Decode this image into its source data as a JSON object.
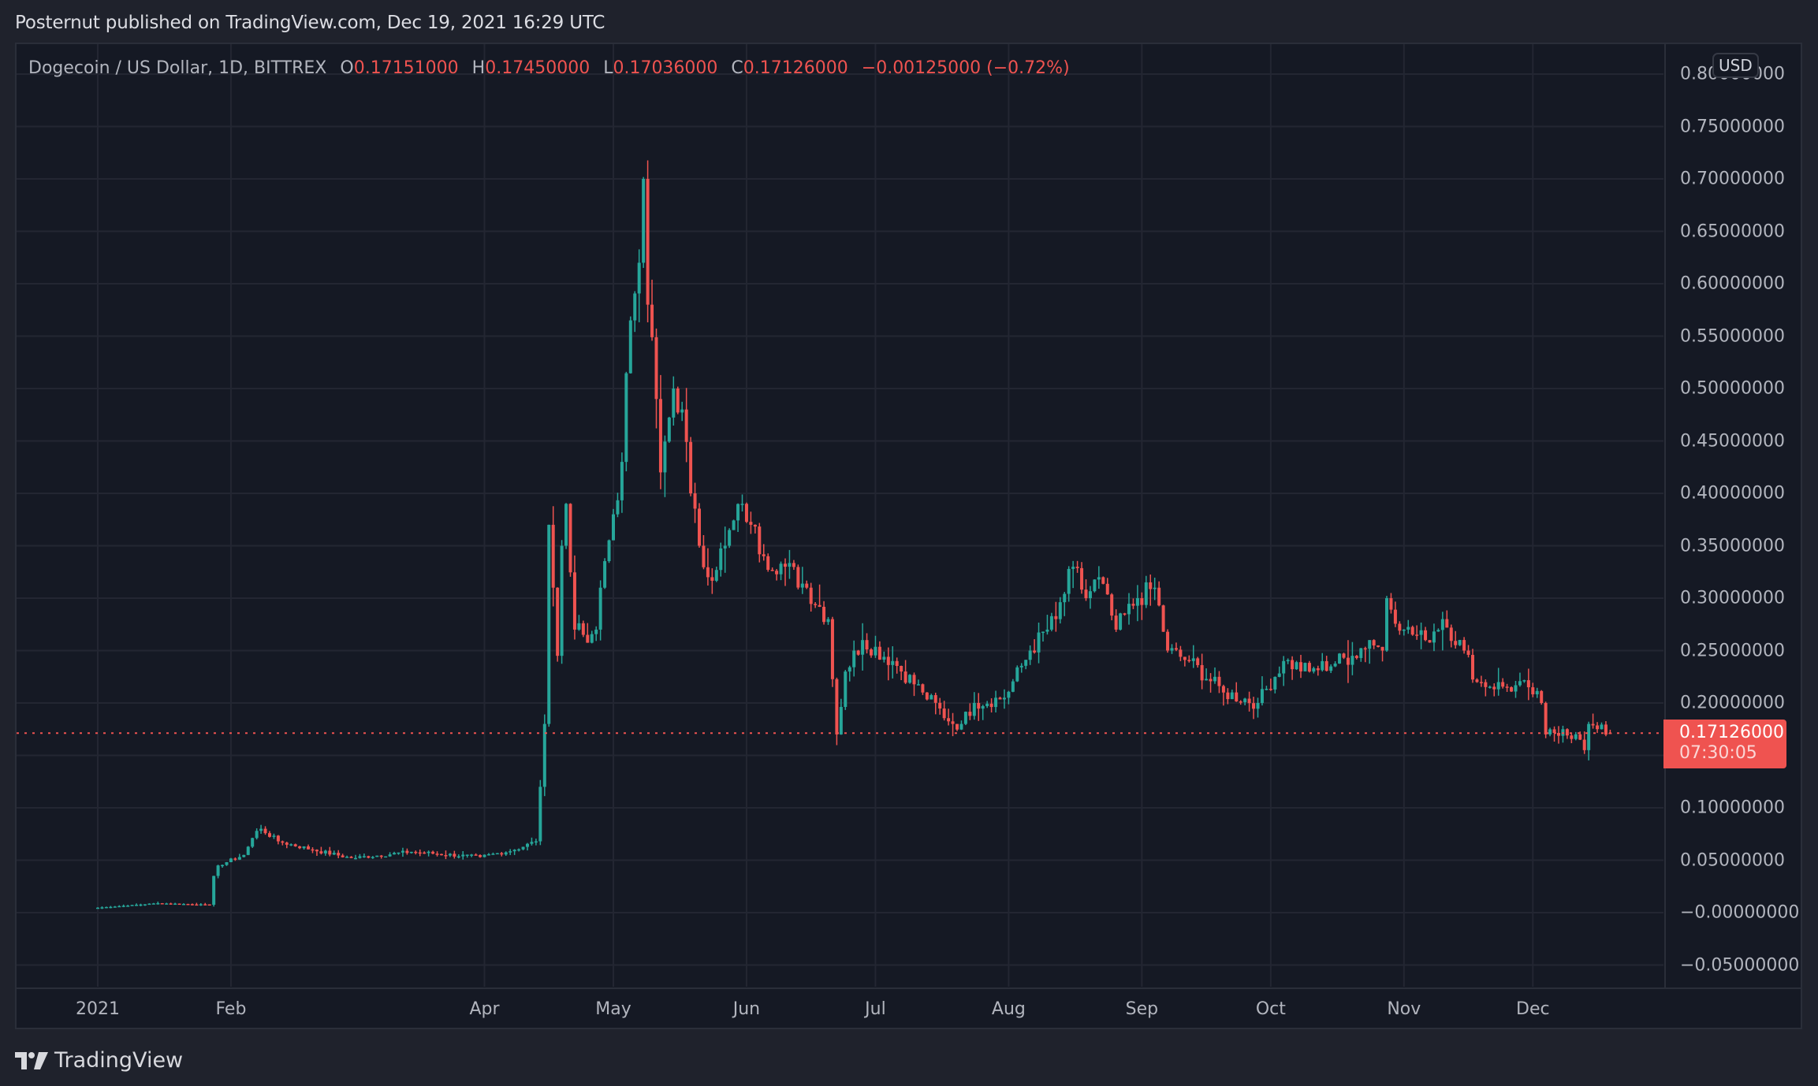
{
  "header": {
    "published": "Posternut published on TradingView.com, Dec 19, 2021 16:29 UTC"
  },
  "legend": {
    "symbol": "Dogecoin / US Dollar, 1D, BITTREX",
    "o_label": "O",
    "o": "0.17151000",
    "h_label": "H",
    "h": "0.17450000",
    "l_label": "L",
    "l": "0.17036000",
    "c_label": "C",
    "c": "0.17126000",
    "change": "−0.00125000 (−0.72%)"
  },
  "price_axis": {
    "currency": "USD",
    "ticks": [
      "0.80000000",
      "0.75000000",
      "0.70000000",
      "0.65000000",
      "0.60000000",
      "0.55000000",
      "0.50000000",
      "0.45000000",
      "0.40000000",
      "0.35000000",
      "0.30000000",
      "0.25000000",
      "0.20000000",
      "0.15000000",
      "0.10000000",
      "0.05000000",
      "−0.00000000",
      "−0.05000000"
    ],
    "last_price": "0.17126000",
    "countdown": "07:30:05"
  },
  "time_axis": {
    "ticks": [
      "2021",
      "Feb",
      "Apr",
      "May",
      "Jun",
      "Jul",
      "Aug",
      "Sep",
      "Oct",
      "Nov",
      "Dec"
    ]
  },
  "footer": {
    "brand": "TradingView"
  },
  "colors": {
    "up": "#26a69a",
    "down": "#ef5350",
    "bg": "#151924",
    "grid": "#232632"
  },
  "chart_data": {
    "type": "candlestick",
    "title": "Dogecoin / US Dollar, 1D, BITTREX",
    "xlabel": "",
    "ylabel": "USD",
    "ylim": [
      -0.06,
      0.82
    ],
    "grid": true,
    "x_ticks": [
      "2021",
      "Feb",
      "Apr",
      "May",
      "Jun",
      "Jul",
      "Aug",
      "Sep",
      "Oct",
      "Nov",
      "Dec"
    ],
    "last": {
      "open": 0.17151,
      "high": 0.1745,
      "low": 0.17036,
      "close": 0.17126,
      "change": -0.00125,
      "change_pct": -0.72
    },
    "approx_close_path": [
      [
        "2021-01-01",
        0.0047
      ],
      [
        "2021-01-15",
        0.009
      ],
      [
        "2021-01-27",
        0.0075
      ],
      [
        "2021-01-28",
        0.035
      ],
      [
        "2021-01-29",
        0.045
      ],
      [
        "2021-02-04",
        0.055
      ],
      [
        "2021-02-07",
        0.078
      ],
      [
        "2021-02-08",
        0.08
      ],
      [
        "2021-02-12",
        0.068
      ],
      [
        "2021-02-20",
        0.06
      ],
      [
        "2021-03-01",
        0.052
      ],
      [
        "2021-03-15",
        0.058
      ],
      [
        "2021-03-31",
        0.053
      ],
      [
        "2021-04-08",
        0.06
      ],
      [
        "2021-04-13",
        0.068
      ],
      [
        "2021-04-14",
        0.12
      ],
      [
        "2021-04-15",
        0.18
      ],
      [
        "2021-04-16",
        0.37
      ],
      [
        "2021-04-17",
        0.31
      ],
      [
        "2021-04-18",
        0.245
      ],
      [
        "2021-04-19",
        0.35
      ],
      [
        "2021-04-20",
        0.39
      ],
      [
        "2021-04-22",
        0.27
      ],
      [
        "2021-04-24",
        0.265
      ],
      [
        "2021-04-27",
        0.27
      ],
      [
        "2021-04-28",
        0.31
      ],
      [
        "2021-05-01",
        0.38
      ],
      [
        "2021-05-03",
        0.43
      ],
      [
        "2021-05-05",
        0.565
      ],
      [
        "2021-05-07",
        0.62
      ],
      [
        "2021-05-08",
        0.7
      ],
      [
        "2021-05-09",
        0.58
      ],
      [
        "2021-05-11",
        0.49
      ],
      [
        "2021-05-12",
        0.42
      ],
      [
        "2021-05-15",
        0.5
      ],
      [
        "2021-05-17",
        0.48
      ],
      [
        "2021-05-19",
        0.4
      ],
      [
        "2021-05-21",
        0.35
      ],
      [
        "2021-05-23",
        0.32
      ],
      [
        "2021-05-27",
        0.35
      ],
      [
        "2021-05-31",
        0.39
      ],
      [
        "2021-06-02",
        0.37
      ],
      [
        "2021-06-05",
        0.34
      ],
      [
        "2021-06-10",
        0.33
      ],
      [
        "2021-06-15",
        0.31
      ],
      [
        "2021-06-20",
        0.28
      ],
      [
        "2021-06-22",
        0.17
      ],
      [
        "2021-06-24",
        0.23
      ],
      [
        "2021-06-28",
        0.26
      ],
      [
        "2021-07-05",
        0.24
      ],
      [
        "2021-07-12",
        0.21
      ],
      [
        "2021-07-19",
        0.18
      ],
      [
        "2021-07-21",
        0.18
      ],
      [
        "2021-07-24",
        0.2
      ],
      [
        "2021-07-31",
        0.205
      ],
      [
        "2021-08-06",
        0.25
      ],
      [
        "2021-08-12",
        0.28
      ],
      [
        "2021-08-16",
        0.33
      ],
      [
        "2021-08-19",
        0.3
      ],
      [
        "2021-08-22",
        0.32
      ],
      [
        "2021-08-26",
        0.27
      ],
      [
        "2021-08-31",
        0.3
      ],
      [
        "2021-09-04",
        0.31
      ],
      [
        "2021-09-07",
        0.25
      ],
      [
        "2021-09-12",
        0.24
      ],
      [
        "2021-09-20",
        0.21
      ],
      [
        "2021-09-28",
        0.2
      ],
      [
        "2021-10-04",
        0.24
      ],
      [
        "2021-10-10",
        0.23
      ],
      [
        "2021-10-20",
        0.245
      ],
      [
        "2021-10-24",
        0.26
      ],
      [
        "2021-10-27",
        0.25
      ],
      [
        "2021-10-28",
        0.3
      ],
      [
        "2021-11-01",
        0.27
      ],
      [
        "2021-11-06",
        0.26
      ],
      [
        "2021-11-10",
        0.28
      ],
      [
        "2021-11-15",
        0.25
      ],
      [
        "2021-11-18",
        0.22
      ],
      [
        "2021-11-25",
        0.215
      ],
      [
        "2021-11-30",
        0.215
      ],
      [
        "2021-12-03",
        0.2
      ],
      [
        "2021-12-04",
        0.17
      ],
      [
        "2021-12-08",
        0.175
      ],
      [
        "2021-12-12",
        0.165
      ],
      [
        "2021-12-13",
        0.155
      ],
      [
        "2021-12-14",
        0.18
      ],
      [
        "2021-12-16",
        0.175
      ],
      [
        "2021-12-19",
        0.17126
      ]
    ]
  }
}
